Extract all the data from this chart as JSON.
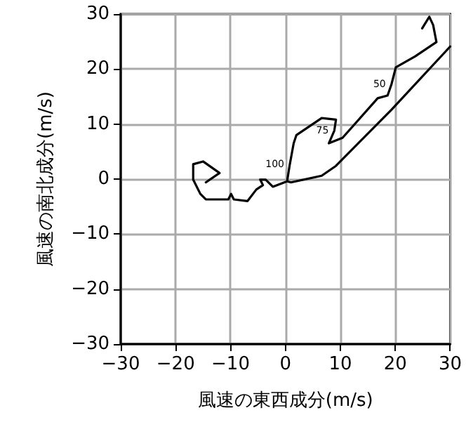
{
  "chart_data": {
    "type": "line",
    "xlabel": "風速の東西成分(m/s)",
    "ylabel": "風速の南北成分(m/s)",
    "xlim": [
      -30,
      30
    ],
    "ylim": [
      -30,
      30
    ],
    "xticks": [
      -30,
      -20,
      -10,
      0,
      10,
      20,
      30
    ],
    "yticks": [
      -30,
      -20,
      -10,
      0,
      10,
      20,
      30
    ],
    "grid": true,
    "marker": "none",
    "series": [
      {
        "color": "#000000",
        "x": [
          -14.5,
          -12.0,
          -15.0,
          -16.8,
          -16.8,
          -15.5,
          -14.5,
          -10.4,
          -9.9,
          -9.4,
          -6.9,
          -5.3,
          -4.1,
          -4.6,
          -3.6,
          -2.3,
          0.3,
          0.8,
          1.5,
          2.0,
          6.6,
          9.2,
          8.9,
          7.9,
          10.4,
          16.8,
          18.6,
          19.3,
          20.1,
          23.6,
          27.5,
          26.9,
          26.2,
          24.9,
          null,
          0.3,
          1.0,
          6.6,
          9.2,
          19.3,
          30.0
        ],
        "values": [
          -0.6,
          1.1,
          3.2,
          2.7,
          -0.1,
          -2.7,
          -3.7,
          -3.7,
          -2.7,
          -3.7,
          -4.0,
          -1.9,
          -1.1,
          -0.1,
          -0.1,
          -1.4,
          -0.4,
          2.7,
          6.5,
          8.0,
          11.1,
          10.8,
          8.8,
          6.5,
          7.5,
          14.7,
          15.2,
          17.2,
          20.3,
          22.3,
          24.9,
          28.0,
          29.5,
          27.4,
          null,
          -0.4,
          -0.6,
          0.6,
          2.4,
          12.6,
          24.1
        ]
      }
    ],
    "annotations": [
      {
        "text": "100",
        "x": 0.8,
        "y": 2.7
      },
      {
        "text": "75",
        "x": 8.9,
        "y": 8.8
      },
      {
        "text": "50",
        "x": 19.3,
        "y": 17.2
      }
    ]
  }
}
